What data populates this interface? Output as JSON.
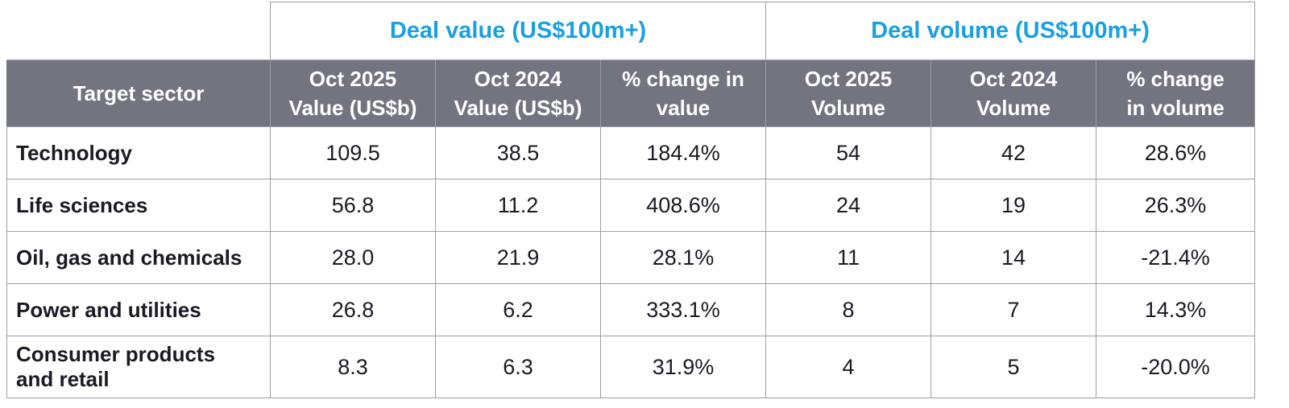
{
  "chart_data": {
    "type": "table",
    "group_headers": [
      "Deal value (US$100m+)",
      "Deal volume (US$100m+)"
    ],
    "columns": [
      [
        "Target sector"
      ],
      [
        "Oct 2025",
        "Value (US$b)"
      ],
      [
        "Oct 2024",
        "Value (US$b)"
      ],
      [
        "% change in",
        "value"
      ],
      [
        "Oct 2025",
        "Volume"
      ],
      [
        "Oct 2024",
        "Volume"
      ],
      [
        "% change",
        "in volume"
      ]
    ],
    "rows": [
      {
        "sector": [
          "Technology"
        ],
        "values": [
          "109.5",
          "38.5",
          "184.4%",
          "54",
          "42",
          "28.6%"
        ]
      },
      {
        "sector": [
          "Life sciences"
        ],
        "values": [
          "56.8",
          "11.2",
          "408.6%",
          "24",
          "19",
          "26.3%"
        ]
      },
      {
        "sector": [
          "Oil, gas and chemicals"
        ],
        "values": [
          "28.0",
          "21.9",
          "28.1%",
          "11",
          "14",
          "-21.4%"
        ]
      },
      {
        "sector": [
          "Power and utilities"
        ],
        "values": [
          "26.8",
          "6.2",
          "333.1%",
          "8",
          "7",
          "14.3%"
        ]
      },
      {
        "sector": [
          "Consumer products",
          "and retail"
        ],
        "values": [
          "8.3",
          "6.3",
          "31.9%",
          "4",
          "5",
          "-20.0%"
        ]
      }
    ]
  },
  "colors": {
    "group_header_text": "#1a9fe0",
    "column_header_bg": "#747480",
    "column_header_text": "#ffffff",
    "grid": "#9e9ea6",
    "body_text": "#1a1a24"
  }
}
